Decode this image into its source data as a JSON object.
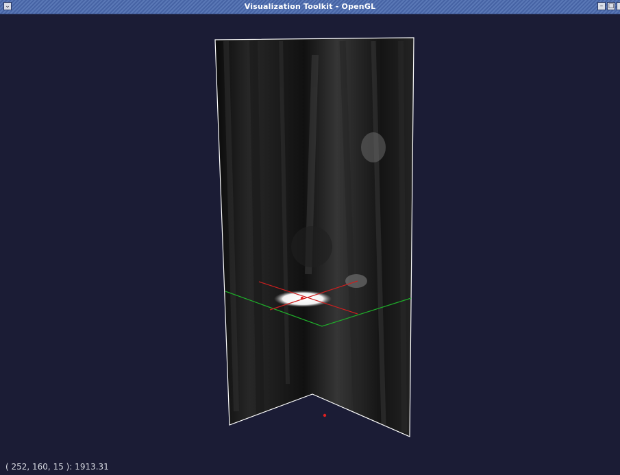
{
  "window": {
    "title": "Visualization Toolkit - OpenGL",
    "menu_icon": "chevron-down-icon",
    "minimize_icon": "minimize-icon",
    "maximize_icon": "maximize-icon",
    "close_icon": "close-icon"
  },
  "viewport": {
    "background_color": "#1b1c35",
    "plane_outline_color": "#ffffff",
    "cursor_axis_x_color": "#cc1f1f",
    "cursor_axis_z_color": "#1fae2a"
  },
  "status": {
    "readout": "( 252, 160, 15 ): 1913.31"
  }
}
